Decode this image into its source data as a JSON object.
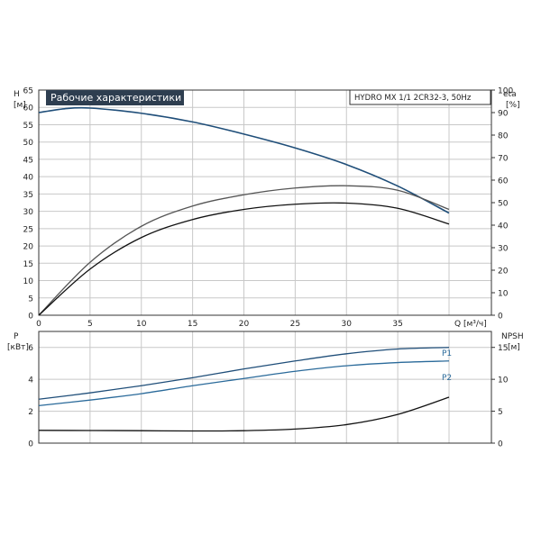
{
  "chart_data": [
    {
      "type": "line",
      "title": "Рабочие характеристики",
      "subtitle": "HYDRO MX 1/1 2CR32-3, 50Hz",
      "xlabel": "Q [м³/ч]",
      "ylabel_left": [
        "H",
        "[м]"
      ],
      "ylabel_right": [
        "eta",
        "[%]"
      ],
      "xlim": [
        0,
        40
      ],
      "xticks": [
        "0",
        "5",
        "10",
        "15",
        "20",
        "25",
        "30",
        "35"
      ],
      "ylim_left": [
        0,
        65
      ],
      "yticks_left": [
        "0",
        "5",
        "10",
        "15",
        "20",
        "25",
        "30",
        "35",
        "40",
        "45",
        "50",
        "55",
        "60",
        "65"
      ],
      "ylim_right": [
        0,
        100
      ],
      "yticks_right": [
        "0",
        "10",
        "20",
        "30",
        "40",
        "50",
        "60",
        "70",
        "80",
        "90",
        "100"
      ],
      "grid": true,
      "series": [
        {
          "axis": "left",
          "color": "#1f4e79",
          "x": [
            0,
            2.5,
            5,
            10,
            15,
            20,
            25,
            30,
            35,
            40
          ],
          "y": [
            58.5,
            59.6,
            59.8,
            58.3,
            55.8,
            52.3,
            48.3,
            43.5,
            37.3,
            29.5
          ]
        },
        {
          "axis": "right",
          "color": "#555555",
          "x": [
            0,
            5,
            10,
            15,
            20,
            25,
            30,
            35,
            40
          ],
          "y": [
            0,
            23.5,
            39.5,
            48.5,
            53.5,
            56.5,
            57.5,
            55.5,
            47
          ]
        },
        {
          "axis": "right",
          "color": "#111111",
          "x": [
            0,
            5,
            10,
            15,
            20,
            25,
            30,
            35,
            40
          ],
          "y": [
            0,
            20.5,
            34.5,
            42.5,
            47,
            49.3,
            49.8,
            47.5,
            40.5
          ]
        }
      ]
    },
    {
      "type": "line",
      "ylabel_left": [
        "P",
        "[кВт]"
      ],
      "ylabel_right": [
        "NPSH",
        "[м]"
      ],
      "xlim": [
        0,
        40
      ],
      "ylim_left": [
        0,
        7
      ],
      "yticks_left": [
        "0",
        "2",
        "4",
        "6"
      ],
      "ylim_right": [
        0,
        17.5
      ],
      "yticks_right": [
        "0",
        "5",
        "10",
        "15"
      ],
      "grid": true,
      "series": [
        {
          "name": "P1",
          "axis": "left",
          "color": "#1f4e79",
          "x": [
            0,
            5,
            10,
            15,
            20,
            25,
            30,
            35,
            40
          ],
          "y": [
            2.75,
            3.15,
            3.6,
            4.1,
            4.65,
            5.15,
            5.6,
            5.9,
            6.0
          ]
        },
        {
          "name": "P2",
          "axis": "left",
          "color": "#2a6a9a",
          "x": [
            0,
            5,
            10,
            15,
            20,
            25,
            30,
            35,
            40
          ],
          "y": [
            2.35,
            2.7,
            3.1,
            3.6,
            4.05,
            4.5,
            4.85,
            5.05,
            5.15
          ]
        },
        {
          "axis": "right",
          "color": "#111111",
          "x": [
            0,
            5,
            10,
            15,
            20,
            25,
            30,
            35,
            40
          ],
          "y": [
            2.0,
            1.98,
            1.95,
            1.9,
            1.95,
            2.2,
            2.9,
            4.5,
            7.2
          ]
        }
      ]
    }
  ]
}
